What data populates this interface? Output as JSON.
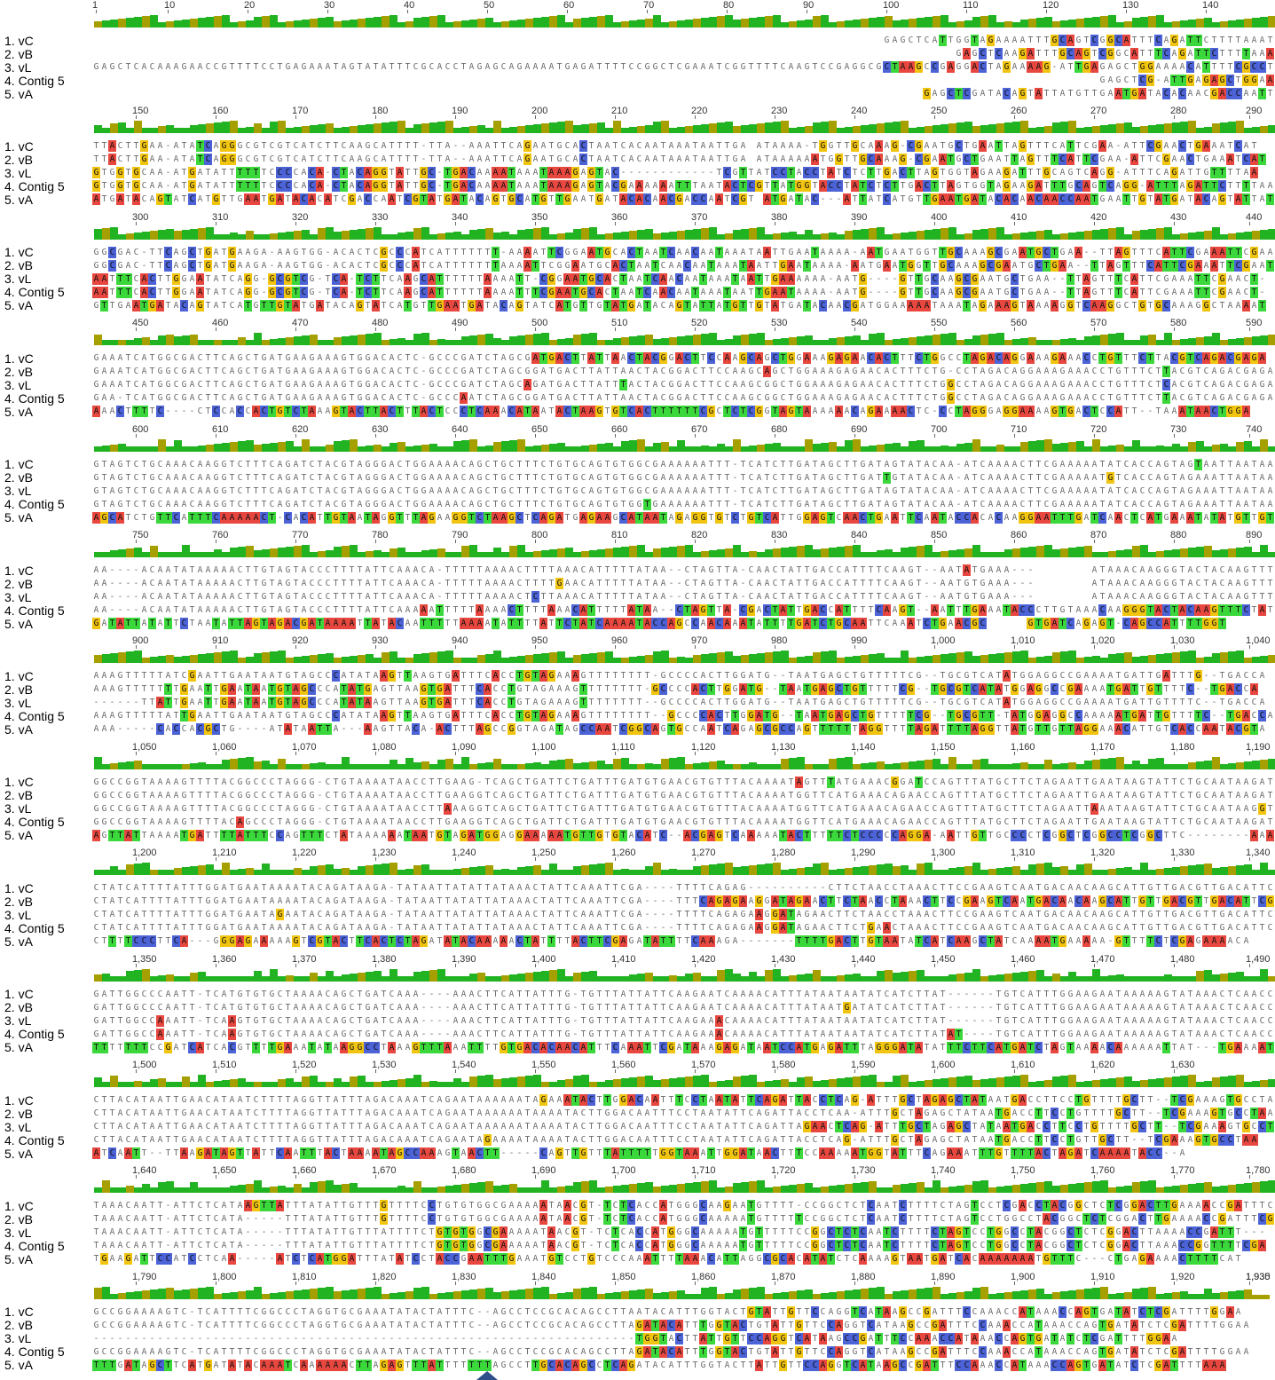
{
  "alignment": {
    "row_labels": [
      "1. vC",
      "2. vB",
      "3. vL",
      "4. Contig 5",
      "5. vA"
    ],
    "colors": {
      "A": "#e8473f",
      "C": "#4c63d8",
      "G": "#f1c40f",
      "T": "#3bd83b",
      "identity_full": "#22b322",
      "identity_partial": "#a5a000"
    },
    "blocks": [
      {
        "ticks": [
          "1",
          "10",
          "20",
          "30",
          "40",
          "50",
          "60",
          "70",
          "80",
          "90",
          "100",
          "110",
          "120",
          "130",
          "140"
        ],
        "rows": [
          "                                                                                                   GAGCTCATTGGTAGAAAATTTGCAGTCGGCATTTCAGATTCTTTTAAATT",
          "                                                                                                            GAGCTCAAGATTTGCAGTCGGCATTTCAGATTCTTTTAAATT",
          "GAGCTCACAAAGAACCGTTTTCCTGAGAAATAGTATATTTCGCACCTAGAGCAGAAAATGAGATTTTCCGGCTCGAAATCGGTTTTCAAGTCCGAGGCGCTAAGCCGAGGACTAGAAAAG-ATTGAGAGCTGGAAAACATTTTCGCCT",
          "                                                                                                                              GAGCTCG-ATTGAGAGCTGGAAAACATTTTCGCCT",
          "                                                                                                        GAGCTCGATACAGTATTATGTTGAATGATACACAACGACCAATTGT"
        ]
      },
      {
        "ticks": [
          "150",
          "160",
          "170",
          "180",
          "190",
          "200",
          "210",
          "220",
          "230",
          "240",
          "250",
          "260",
          "270",
          "280",
          "290"
        ],
        "rows": [
          "TTACTTGAA-ATATCAGGGCGTCGTCATCTTCAAGCATTTT-TTA--AAATTCAGAATGCACTAATCACAATAAATAATTGA ATAAAA-TGGTTGCAAAG-CGAATGCTGAATTAGTTTCATTCGAA-ATTCGAACTGAAATCAT",
          "TTACTTGAA-ATATCAGGGCGTCGTCATCTTCAAGCATTTT-TTA--AAATTCAGAATGCACTAATCACAATAAATAATTGA ATAAAAAATGGTTGCAAAG-CGAATGCTGAATTAGTTTCATTCGAA-ATTCGAACTGAAATCAT",
          "GTGGTGCAA-ATGATATTTTTTCCCCACA-CTACAGGTATTGC-TGACAAAATAAATAAAGAGTAC------------TCGTTATCCTACCTATCTCTTGACTTAGTGGTAGAAGATTTGCAGTCAGG-ATTTCAGATTGTTTTAA",
          "GTGGTGCAA-ATGATATTTTTTCCCCACA-CTACAGGTATTGC-TGACAAAATAAATAAAGAGTACGAAAAAATTTAATACTCGTTATGGTACCTATCTCTTGACTTAGTGGTAGAAGATTTGCAGTCAGG-ATTTAGATTCTTTTAA",
          "ATGATACAGTATCATGTTGAATGATACACATCGACCAATCGTATGATACAGTGCATGTTGAATGATACACAACGACCAATCGT ATGATAC---ATTATCATGTTGAATGATACACAACAACCAATGAATTGTATGATACAGTATTAT"
        ]
      },
      {
        "ticks": [
          "300",
          "310",
          "320",
          "330",
          "340",
          "350",
          "360",
          "370",
          "380",
          "390",
          "400",
          "410",
          "420",
          "430",
          "440"
        ],
        "rows": [
          "GGCGAC-TTCAGCTGATGAAGA-AAGTGG-ACACTCGCCCATCATTTTTTT-AAAATTCGGAATGCACTAATCAACAATAAATAATTGAATAAAA-AATGAATGGTTGCAAAGCGAATGCTGAA--TTAGTTTCATTCGAAATTCGAATTT",
          "GGCGAC-TTCAGCTGATGAAGA-AAGTGG-ACACTCGCCCATCATTTTTTTAAAATTCGGAATGCACTAATCAACAATAAATAATTGAATAAAA-AATGAATGGTTGCAAAGCGAATGCTGAA--TTAGTTTCATTCGAAATTCGAATTT",
          "AATTTCACTTGGAATATCAGG-GCGTCG-TCA-TCTTCAAGCATTTTTTAAAATT-CGGAATGCACTAATCAACAATAAATAATTGAAAAAA-AATG----GTTGCAAGCGAATGCTGAA--TTAGTTTCATTCGAAATTCGAACT-",
          "AATTTCACTTGGAATATCAGG-GCGTCG-TCA-TCTTCAAGCATTTTTTAAAATTTCGAATGCACTAATCAACAATAAATAATTGAATAAAA-AATG----GTTGCAAGCGAATGCTGAA--TTAGTTTCATTCGAAATTCGAACT-",
          "GTTGAATGATACAGTATCATGTTGTATGATACAGTATCATGTTGAATGATACAGTATCATGTTGTATGATACAGTATTATGTTGTATGATACAACGATGGAAAAATAAATAGAAAGTAAAAGGTCAAGGCTGTGCAAAGGCTAAAAT"
        ]
      },
      {
        "ticks": [
          "450",
          "460",
          "470",
          "480",
          "490",
          "500",
          "510",
          "520",
          "530",
          "540",
          "550",
          "560",
          "570",
          "580",
          "590"
        ],
        "rows": [
          "GAAATCATGGCGACTTCAGCTGATGAAGAAAGTGGACACTC-GCCCGATCTAGCGATGACTTATTAACTACGGACTTCCAAGCAGCTGGAAAGAGAACACTTTCTGGCCTAGACAGGAAAGAAACCTGTTTCTTACGTCAGACGAGA",
          "GAAATCATGGCGACTTCAGCTGATGAAGAAAGTGGACACTC-GCCCGATCTAGCGGATGACTTATTAACTACGGACTTCCAAGCAGCTGGAAAGAGAACACTTTCTG-CCTAGACAGGAAAGAAACCTGTTTCTTACGTCAGACGAGA",
          "GAAATCATGGCGACTTCAGCTGATGAAGAAAGTGGACACTC-GCCCGATCTAGCAGATGACTTATTTACTACGGACTTCCAAGCGGCTGGAAAGAGAACACTTTCTGGCCTAGACAGGAAAGAAACCTGTTTCTCACGTCAGACGAGA",
          "GAA-TCATGGCGACTTCAGCTGATGAAGAAAGTGGACACTC-GCCCAATCTAGCGGATGACTTATTAACTACGGACTTCCAAGCGGCTGGAAAGAGAACACTTTCTGGCCTAGACAGGAAAGAAACCTGTTTCTTACGTCAGACGAGA",
          "AAACTTTTC----CTCCACCACTGTCTAAAGTACTTACTTTACTCCCTCAAACATAATACTAAGTGTCACTTTTTTCGCTCTCGGTAGTAAAAAACAGAAAACTC-CCTAGGGAGGAAAAGTGACTCCATT--TAAATAACTGGA"
        ]
      },
      {
        "ticks": [
          "600",
          "610",
          "620",
          "630",
          "640",
          "650",
          "660",
          "670",
          "680",
          "690",
          "700",
          "710",
          "720",
          "730",
          "740"
        ],
        "rows": [
          "GTAGTCTGCAAACAAGGTCTTTCAGATCTACGTAGGGACTGGAAAACAGCTGCTTTCTGTGCAGTGTGGCGAAAAAATTT-TCATCTTGATAGCTTGATAGTATACAA-ATCAAAACTTCGAAAAATATCACCAGTAGTAATTAATAA",
          "GTAGTCTGCAAACAAGGTCTTTCAGATCTACGTAGGGACTGGAAAACAGCTGCTTTCTGTGCAGTGTGGCGAAAAAATTT-TCATCTTGATAGCTTGATTGTATACAA-ATCAAAACTTCGAAAAATGTCACCAGTAGAAATTAATAA",
          "GTAGTCTGCAAACAAGGTCTTTCAGATCTACGTAGGGACTGGAAAACAGCTGCTTTCTGTGCAGTGTGGCGAAAAAATTT-TCATCTTGATAGCTTGATAGTATACAA-ATCAAAACTTCGAAAAATATCACCAGTAGAAATTAATAA",
          "GTAGTCTGCAAACAAGGTCTTTCAGATCTACGTAGGGACTGGAAAACAGCTGCTTTCTGTGCAGTGTGGTGAAAAAATTT-TCATCTTGATAGCTTGATAGTATACAA-ATCAAAACTTCGAAAAATATCACCAGTAGAAATTAATAA",
          "AGCATCTGTTCATTTCAAAAACT-CACATTGTAATAGGTTTAGAAGGTCTAAGCTCAGATGAGAAGCATAATAGAGGTGTCTGTCATTGGAGTCAACTGAATTCAATACCACACAAGGAATTTGATCAACTCATGAAATATATGTTGTAT"
        ]
      },
      {
        "ticks": [
          "750",
          "760",
          "770",
          "780",
          "790",
          "800",
          "810",
          "820",
          "830",
          "840",
          "850",
          "860",
          "870",
          "880",
          "890"
        ],
        "rows": [
          "AA----ACAATATAAAAACTTGTAGTACCCTTTTATTCAAACA-TTTTTAAAACTTTTAAACATTTTTATAA--CTAGTTA-CAACTATTGACCATTTTCAAGT--AATATGAAA---       ATAAACAAGGGTACTACAAGTTTCTAT",
          "AA----ACAATATAAAAACTTGTAGTACCCTTTTATTCAAACA-TTTTTAAAACTTTTGAACATTTTTATAA--CTAGTTA-CAACTATTGACCATTTTCAAGT--AATGTGAAA---       ATAAACAAGGGTACTACAAGTTTCTAT",
          "AA----ACAATATAAAAACTTGTAGTACCCTTTTATTCAAACA-TTTTTAAAACTCTTAAACATTTTTATAA--CTAGTTA-CAACTATTGACCATTTTCAAGT--AATGTGAAA---       ATAAACAAGGGTACTACAAGTTT----",
          "AA----ACAATATAAAAACTTGTAGTACCCTTTTATTCAAAAATTTTTAAAACTTTTAAACATTTTTATAA--CTAGTTA-CGACTATTGACCATTTTCAAGT--AATTTGAAATACCCTTGTAAACAAGGGTACTACAAGTTTCTAT",
          "GATATTATATTCTAATATTAGTAGACGATAAAATTATACAATTTTTAAAATATTTTATTCTATCAAAATACCAGCCAACAAATATTTTGATCTGCAATTCAAATCTGAACGC     GTGATCAGAGT-CAGCCATTTTGGT"
        ]
      },
      {
        "ticks": [
          "900",
          "910",
          "920",
          "930",
          "940",
          "950",
          "960",
          "970",
          "980",
          "990",
          "1,000",
          "1,010",
          "1,020",
          "1,030",
          "1,040"
        ],
        "rows": [
          "AAAGTTTTTATCGAATTGAATAATGTAGCCCATATAAGTTAAGTGATTTCACCTGTAGAAAGTTTTTTTT-GCCCCACTTGGATG--TAATGAGCTGTTTTTCG--TGCGTCATATGGAGGCCGAAAATGATTGATTTG--TGACCA",
          "AAAGTTTTTTTGAATTGAATAATGTAGCCCATATGAGTTAAGTGATTTCACCTGTAGAAAGTTTTTTTT-GCCCCACTTGGATG--TAATGAGCTGTTTTTCG--TGCGTCATATGGAGGCCGAAAATGATTGTTTTC--TGACCA",
          "------TTATTGAATTGAATAATGTAGCCCATATAAGTTAAGTGATTTCACCTGTAGAAAGTTTTTTTT--GCCCCACTTGGATG--TAATGAGCTGTTTTTCG--TGCGTCATATGGAGGCCGAAAATGATTGTTTTC--TGACCA",
          "AAAGTTTTTATTGAATTGAATAATGTAGCCCATATAAGTTAAGTGATTTCACCTGTAGAAAGTTTTTTTT--GCCCCACTTGGATG--TAATGAGCTGTTTTTCG--TGCGTT-TATGGAGGCCAAAAATGATTGTTTTC--TGACCA",
          "AAA-----CACCACGCTG----ATATAATTA---AAGTTACA-ACTTTAGCCGGTAGATAGCCAATCGGCAGTGCCAATCAGAGCGCCAGTTTTTTAGGTTTTAGATTTTAGGTTATGTTGTTAGGAAACATTGTCACCAATACGTA"
        ]
      },
      {
        "ticks": [
          "1,050",
          "1,060",
          "1,070",
          "1,080",
          "1,090",
          "1,100",
          "1,110",
          "1,120",
          "1,130",
          "1,140",
          "1,150",
          "1,160",
          "1,170",
          "1,180",
          "1,190"
        ],
        "rows": [
          "GGCCGGTAAAAGTTTTACGGCCCTAGGG-CTGTAAAATAACCTTGAAG-TCAGCTGATTCTGATTTGATGTGAACGTGTTTACAAAATAGTTTATGAAACGGATCCAGTTTATGCTTCTAGAATTGAATAAGTATTCTGCAATAAGATA",
          "GGCCGGTAAAAGTTTTACGGCCCTAGGG-CTGTAAAATAACCTTGAAGGTCAGCTGATTCTGATTTGATGTGAACGTGTTTACAAAATGGTTCATGAAACAGAACCAGTTTATGCTTCTAGAATTGAATAAGTATTCTGCAATAAGATA",
          "GGCCGGTAAAAGTTTTACGGCCCTAGGG-CTGTAAAATAACCTTAAAGGTCAGCTGATTCTGATTTGATGTGAACGTGTTTACAAAATGGTTCATGAAACAGAACCAGTTTATGCTTCTAGAATTAAATAAGTATTCTGCAATAAGGTA",
          "GGCCGGTAAAAGTTTTACAGCCCTAGGG-CTGTAAAATAACCTTGAAGGTCAGCTGATTCTGATTTGATGTGAACGTGTTTACAAAATGGTTCATGAAACAGAACCAGTTTATGCTTCTAGAATTGAATAAGTATTCTGCAATAAGATA",
          "AGTTATTAAAATGATTTTATTTCCAGTTTCTATAAAAAATAATGTAGATGGAGGAAAAATGTTGTGTACATC--ACGAGTCAAAAATACTTTTTCTCCCCCAGGA-AATTGTTGCCCCTCGGCTCGGCCTCGGCTTC--------AAA"
        ]
      },
      {
        "ticks": [
          "1,200",
          "1,210",
          "1,220",
          "1,230",
          "1,240",
          "1,250",
          "1,260",
          "1,270",
          "1,280",
          "1,290",
          "1,300",
          "1,310",
          "1,320",
          "1,330",
          "1,340"
        ],
        "rows": [
          "CTATCATTTTATTTGGATGAATAAAATACAGATAAGA-TATAATTATATTATAAACTATTCAAATTCGA----TTTTCAGAG----------CTTCTAACCTAAACTTCCGAAGTCAATGACAACAAGCATTGTTGACGTTGACATTCA",
          "CTATCATTTTATTTGGATGAATAAAATACAGATAAGA-TATAATTATATTATAAACTATTCAAATTCGA----TTTCAGAGAAGGATAGAACTTCTAACCTAAACTTCCGAAGTCAATGACAACAAGCATTGTTGACGTTGACATTCG",
          "CTATCATTTTATTTGGATGAATAGAATACAGATAAGA-TATAATTATATTATAAACTATTCAAATTCGA----TTTTCAGAGAAGGATAGAACTTCTAACCTAAACTTCCGAAGTCAATGACAACAAGCATTGTTGACGTTGACATTCA",
          "CTATCATTTTATTTGGATGAATAAAATACAGATAAGA-TATAATTATATTATAAACTATTCAAATTCGA----TTTTCAGAGAAGGATAGAACTTCTGAACTAAACTTCCGAAGTCAATGACAACAAGCATTGTTGACGTTGACATTCA",
          "CTTTTCCCTTCA---GGGAGAAAAAGTCGTACTTCACTCTAGATATACAAAAACTATTTTACTTCGAGATATTTTCAAAGA-------TTTTGACTTGTAATATCATCAAGCTATCAAAATGAAAAA-GTTTTCTCGAGAAAACA"
        ]
      },
      {
        "ticks": [
          "1,350",
          "1,360",
          "1,370",
          "1,380",
          "1,390",
          "1,400",
          "1,410",
          "1,420",
          "1,430",
          "1,440",
          "1,450",
          "1,460",
          "1,470",
          "1,480",
          "1,490"
        ],
        "rows": [
          "GATTGGCCCAATT-TCATGTGTGCTAAAACAGCTGATCAAA----AAACTTCATTATTTG-TGTTTATTATTCAAGAATCAAAACATTTATAATAATATCATCTTAT------TGTCATTTGGAAGAATAAAAAGTATAAACTCAACCT",
          "GATTGGCCCAATT-TCATGTGTGCTAAAACAGCTGATCAAA----AAACTTCATTATTTG-TGTTTATTATTCAAGAATCAAAACATTTATAATGATATCATCTTAT------TGTCATTTGGAAGAATAAAAAGTATAAACTCAACCT",
          "GATTGGCCAAATT-TCAAGTGTGCTAAAACAGCTGATCAAA----AAACTTCATTATTTG-TGTTTATTATTCAAGAAACAAAACATTTATAATAATATCATCTTAT------TGTCATTTGGAAGAATAAAAAGTATAAACTCAACCT",
          "GATTGGCCAAATT-TCAAGTGTGCTAAAACAGCTGATCAAA----AAACTTCATTATTTG-TGTTTATTATTCAAGAAACAAAACATTTATAATAATATCATCTTATAT----TGTCATTTGGAAGAATAAAAAGTATAAACTCAACCT",
          "TTTTTTTCCGATCATCACGTTTTGAAATATAAGGCCTAAAGTTTAAATTTTGTGACACAACATTTCAAATTCGATAAAGAGATAATCCATGAGATTTAGGGATATATTTCTTCATGATCTAGTAAAACAAAAAATTAT---TGAAAAT"
        ]
      },
      {
        "ticks": [
          "1,500",
          "1,510",
          "1,520",
          "1,530",
          "1,540",
          "1,550",
          "1,560",
          "1,570",
          "1,580",
          "1,590",
          "1,600",
          "1,610",
          "1,620",
          "1,630"
        ],
        "rows": [
          "CTTACATAATTGAACATAATCTTTTAGGTTATTTAGACAAATCAGAATAAAAAATAGAAATACTTGGACAATTTCCTAATATTCAGATTACCTCAG-ATTTGCTAGAGCTATAATGACCTTCCTGTTTTGCTT--TCGAAAGTGCCTAA",
          "CTTACATAATTGAACATAATCTTTTAGGTTATTTAGACAAATCAGAATAAAAAATAAAATACTTGGACAATTTCCTAATATTCAGATTACCTCAA-ATTTGCTAGAGCTATAATGACCTTCCTGTTTTGCTT--TCGAAAGTGCCTAA",
          "CTTACATAATTGAACATAATCTTTTAGGTTATTTAGACAAATCAGAATAAAAAATAAAATACTTGGACAATTTCCTAATATTCAGATTAGAACTCAG-ATTTGCTAGAGCTATAATGACCTTCCTGTTTTGCTT--TCGAAAGTGCCTAA",
          "CTTACATAATTGAACATAATCTTTTAGGTTATTTAGACAAATCAGAATAGAAAATAAAATACTTGGACAATTTCCTAATATTCAGATTACCTCAG-ATTTGCTAGAGCTATAATGACCTTCCTGTTGCTT--TCGAAAGTGCCTAA",
          "ATCAATT--TTAAGATAGTTATTCAATTTACTAAAATAGCCAAAGTAACTT-----CAGTTGTTTATTTTTGGTAAATTGGATAACTTTCCAAAAATGGTATTTCAGAAATTTGTTTTACTAGATCAAAATACC--A"
        ]
      },
      {
        "ticks": [
          "1,640",
          "1,650",
          "1,660",
          "1,670",
          "1,680",
          "1,690",
          "1,700",
          "1,710",
          "1,720",
          "1,730",
          "1,740",
          "1,750",
          "1,760",
          "1,770",
          "1,780"
        ],
        "rows": [
          "TAAACAATT-ATTCTCATAAGTTATTTATATTGTTTGTTTTCCTGTGTGGCGAAAAATAACGT-TCTCACCATGGGCAAGAATGTTTT-CCGGCTCTCAATCTTTTCTAGTCCTCGACCTACGGCTCTCGGACTTGAAAACCGATTTCGA",
          "TAAACAATT-ATTCTCATA-----TTTATATTGTTTGTTTTCCTGTGTGGCGAAAAATAACGT-TCTCACCATGGGCAAAAATGTTTTTCCGGCTCTCAATCTTTTCTAGTCCTGGCCTACGGCTCTCGGACTTGAAAACCGATTTCGA",
          "TAAACAATT-ATTCTCATA-----TTTATATTGTTTATTTTCTGTGTGGCGAAAAATAACGT-TCTCACCATGGGCAAAAATGTTTTTCCGGCTCTCAATCTTTTCTAGTCCTGGCCTACGGCTCTCGGACTTAAAACCGATTT---",
          "TAAACAATT-ATTCTCATA-----TTTATATTGTTTATTTTCTGTGTGGCGAAAAATAACGT-TCTCACCATGGGCAAAAATGTTTTTCCGGCTCTCAATCTTTTCTAGTCCTGGCCTACGGCTCTCGGACTTAAACCGGTTTTCGA",
          "TGAAGATTCCATCCTCAA-----ATCTCATGGATTTATATCCTACCGAATTTGAAATGTCCTGTCCCAAATTTTAAACATTAGGCGCACATATCTCAAAAGTAATGATCACAAAAAAATGTTTC---CTGAGAAAACTTTTCAT"
        ]
      },
      {
        "ticks": [
          "1,790",
          "1,800",
          "1,810",
          "1,820",
          "1,830",
          "1,840",
          "1,850",
          "1,860",
          "1,870",
          "1,880",
          "1,890",
          "1,900",
          "1,910",
          "1,920",
          "1,930",
          "1,935"
        ],
        "rows": [
          "GCCGGAAAAGTC-TCATTTTCGGCCCTAGGTGCGAAATATACTATTTC--AGCCTCCGCACAGCCTTAATACATTTGGTACTGTATTGTTCCAGGTCATAAGCCGATTTCCAAACCATAAACCAGTGATATCTCGATTTTGGAA",
          "GCCGGAAAAGTC-TCATTTTCGGCCCTAGGTGCGAAATATACTATTTC--AGCCTCCGCACAGCCTTAGATACATTTGGTACTGTATTGTTCCAGGTCATAAGCCGATTTCCAAACCATAAACCAGTGATATCTCGATTTTGGAA",
          "--------------------------------------------------------------------TGGTACTTATTGTTCCAGGTCATAAGCCGATTTCCAAACCATAAACCAGTGATATCTCGATTTTGGAA",
          "GCCGGAAAAGTC-TCATTTTCGGCCCTAGGTGCGAAATATACTATTTC--AGCCTCCGCACAGCCTTAGATACATTTGGTACTGTATTGTTCCAGGTCATAAGCCGATTTCCAAACCATAAACCAGTGATATCTCGATTTTGGAA",
          "TTTGATAGCTTCATGATATACAAATCAAAAAACTTAGAGTTTATTTTTTTAGCCTTGCACAGCCTCAGATACATTTGGTACTTATTGTTCCAGGTCATAAGCCGATTTCCAAACCATAAACCAGTGATATCTCGATTTTAAA"
        ]
      }
    ]
  }
}
